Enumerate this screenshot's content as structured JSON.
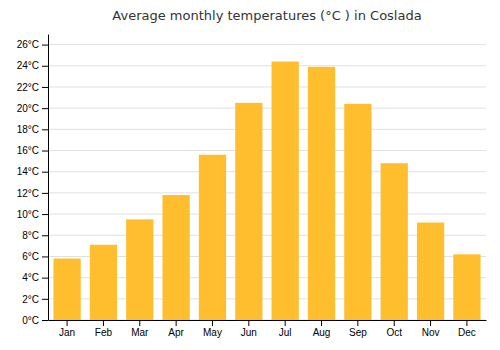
{
  "chart_data": {
    "type": "bar",
    "title": "Average monthly temperatures (°C ) in Coslada",
    "categories": [
      "Jan",
      "Feb",
      "Mar",
      "Apr",
      "May",
      "Jun",
      "Jul",
      "Aug",
      "Sep",
      "Oct",
      "Nov",
      "Dec"
    ],
    "values": [
      5.8,
      7.1,
      9.5,
      11.8,
      15.6,
      20.5,
      24.4,
      23.9,
      20.4,
      14.8,
      9.2,
      6.2
    ],
    "color": "#FFBE2D",
    "ylim": [
      0,
      27
    ],
    "yticks": [
      {
        "value": 0,
        "label": "0°C"
      },
      {
        "value": 2,
        "label": "2°C"
      },
      {
        "value": 4,
        "label": "4°C"
      },
      {
        "value": 6,
        "label": "6°C"
      },
      {
        "value": 8,
        "label": "8°C"
      },
      {
        "value": 10,
        "label": "10°C"
      },
      {
        "value": 12,
        "label": "12°C"
      },
      {
        "value": 14,
        "label": "14°C"
      },
      {
        "value": 16,
        "label": "16°C"
      },
      {
        "value": 18,
        "label": "18°C"
      },
      {
        "value": 20,
        "label": "20°C"
      },
      {
        "value": 22,
        "label": "22°C"
      },
      {
        "value": 24,
        "label": "24°C"
      },
      {
        "value": 26,
        "label": "26°C"
      }
    ],
    "grid": true
  }
}
